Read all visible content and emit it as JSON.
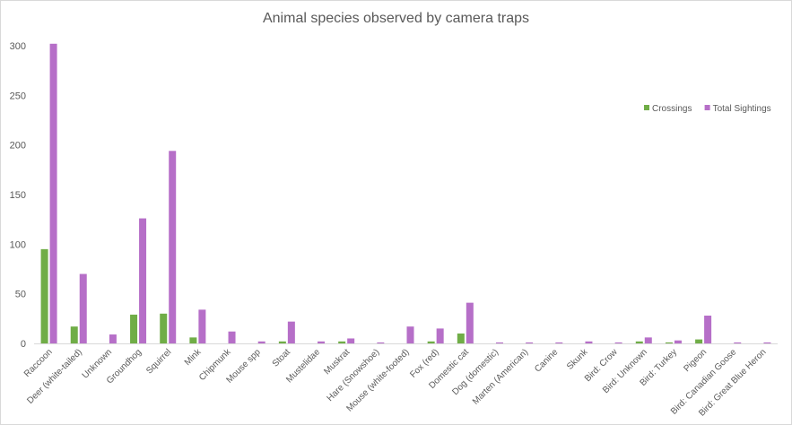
{
  "chart_data": {
    "type": "bar",
    "title": "Animal species observed by camera traps",
    "xlabel": "",
    "ylabel": "",
    "ylim": [
      0,
      300
    ],
    "yticks": [
      0,
      50,
      100,
      150,
      200,
      250,
      300
    ],
    "grid": false,
    "legend_position": "right",
    "categories": [
      "Raccoon",
      "Deer (white-tailed)",
      "Unknown",
      "Groundhog",
      "Squirrel",
      "Mink",
      "Chipmunk",
      "Mouse spp",
      "Stoat",
      "Mustelidae",
      "Muskrat",
      "Hare (Snowshoe)",
      "Mouse (white-footed)",
      "Fox (red)",
      "Domestic cat",
      "Dog (domestic)",
      "Marten (American)",
      "Canine",
      "Skunk",
      "Bird: Crow",
      "Bird: Unknown",
      "Bird: Turkey",
      "Pigeon",
      "Bird: Canadian Goose",
      "Bird: Great Blue Heron"
    ],
    "series": [
      {
        "name": "Crossings",
        "color": "#70ad47",
        "values": [
          95,
          17,
          0,
          29,
          30,
          6,
          0,
          0,
          2,
          0,
          2,
          0,
          0,
          2,
          10,
          0,
          0,
          0,
          0,
          0,
          2,
          1,
          4,
          0,
          0
        ]
      },
      {
        "name": "Total Sightings",
        "color": "#b66fc8",
        "values": [
          302,
          70,
          9,
          126,
          194,
          34,
          12,
          2,
          22,
          2,
          5,
          1,
          17,
          15,
          41,
          1,
          1,
          1,
          2,
          1,
          6,
          3,
          28,
          1,
          1
        ]
      }
    ]
  }
}
